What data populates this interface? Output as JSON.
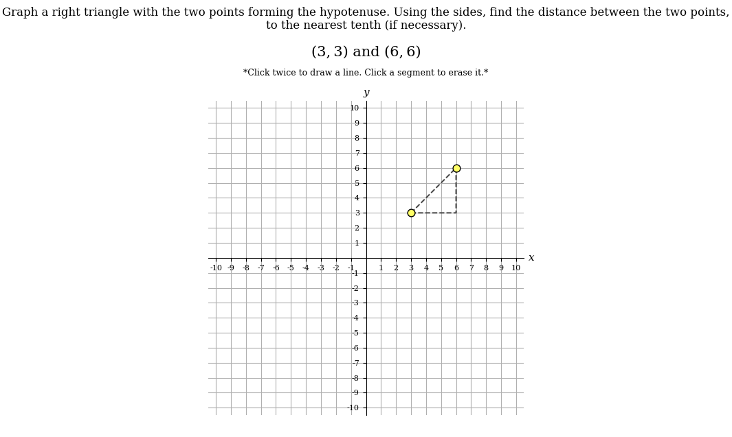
{
  "chart_data": {
    "type": "scatter",
    "title": "Graph a right triangle with the two points forming the hypotenuse. Using the sides, find the distance between the two points, to the nearest tenth (if necessary).",
    "subtitle": "(3, 3) and (6, 6)",
    "annotations": [
      "*Click twice to draw a line. Click a segment to erase it.*"
    ],
    "xlabel": "x",
    "ylabel": "y",
    "series": [
      {
        "type": "line",
        "line_style": "dashed",
        "color": "#444444",
        "x": [
          3,
          6,
          6,
          3
        ],
        "values": [
          3,
          3,
          6,
          3
        ]
      },
      {
        "type": "scatter",
        "marker": "circle",
        "color": "#ffff66",
        "x": [
          3,
          6
        ],
        "values": [
          3,
          6
        ]
      }
    ],
    "xlim": [
      -10.5,
      10.5
    ],
    "ylim": [
      -10.5,
      10.5
    ],
    "xticks": [
      -10,
      -9,
      -8,
      -7,
      -6,
      -5,
      -4,
      -3,
      -2,
      -1,
      1,
      2,
      3,
      4,
      5,
      6,
      7,
      8,
      9,
      10
    ],
    "yticks": [
      -10,
      -9,
      -8,
      -7,
      -6,
      -5,
      -4,
      -3,
      -2,
      -1,
      1,
      2,
      3,
      4,
      5,
      6,
      7,
      8,
      9,
      10
    ],
    "grid": true
  }
}
